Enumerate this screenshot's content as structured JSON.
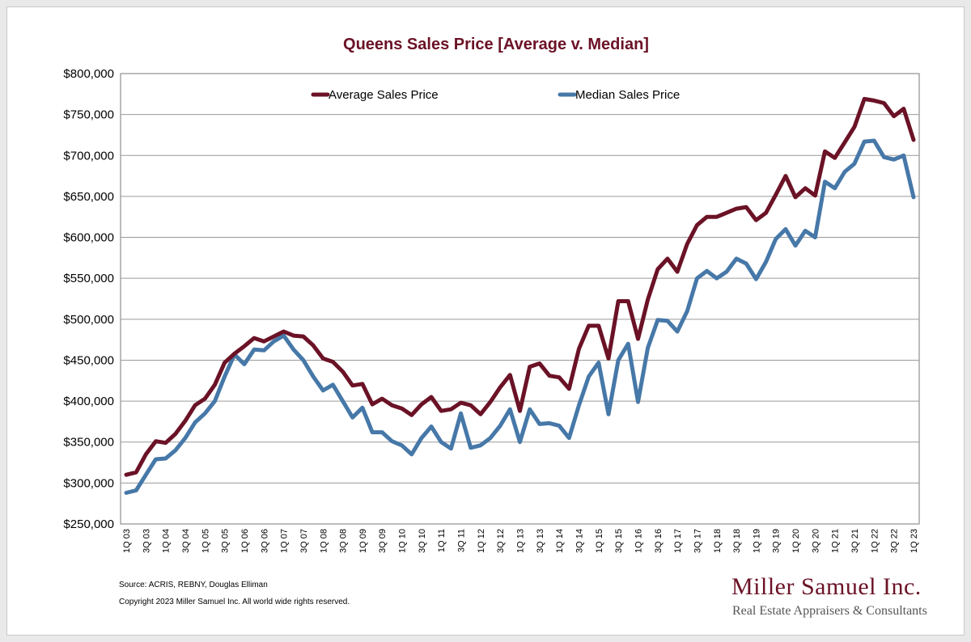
{
  "chart_data": {
    "type": "line",
    "title": "Queens Sales Price [Average v. Median]",
    "xlabel": "",
    "ylabel": "",
    "ylim": [
      250000,
      800000
    ],
    "yticks": [
      250000,
      300000,
      350000,
      400000,
      450000,
      500000,
      550000,
      600000,
      650000,
      700000,
      750000,
      800000
    ],
    "ytick_labels": [
      "$250,000",
      "$300,000",
      "$350,000",
      "$400,000",
      "$450,000",
      "$500,000",
      "$550,000",
      "$600,000",
      "$650,000",
      "$700,000",
      "$750,000",
      "$800,000"
    ],
    "grid": "horizontal",
    "legend_position": "top",
    "x": [
      "1Q 03",
      "2Q 03",
      "3Q 03",
      "4Q 03",
      "1Q 04",
      "2Q 04",
      "3Q 04",
      "4Q 04",
      "1Q 05",
      "2Q 05",
      "3Q 05",
      "4Q 05",
      "1Q 06",
      "2Q 06",
      "3Q 06",
      "4Q 06",
      "1Q 07",
      "2Q 07",
      "3Q 07",
      "4Q 07",
      "1Q 08",
      "2Q 08",
      "3Q 08",
      "4Q 08",
      "1Q 09",
      "2Q 09",
      "3Q 09",
      "4Q 09",
      "1Q 10",
      "2Q 10",
      "3Q 10",
      "4Q 10",
      "1Q 11",
      "2Q 11",
      "3Q 11",
      "4Q 11",
      "1Q 12",
      "2Q 12",
      "3Q 12",
      "4Q 12",
      "1Q 13",
      "2Q 13",
      "3Q 13",
      "4Q 13",
      "1Q 14",
      "2Q 14",
      "3Q 14",
      "4Q 14",
      "1Q 15",
      "2Q 15",
      "3Q 15",
      "4Q 15",
      "1Q 16",
      "2Q 16",
      "3Q 16",
      "4Q 16",
      "1Q 17",
      "2Q 17",
      "3Q 17",
      "4Q 17",
      "1Q 18",
      "2Q 18",
      "3Q 18",
      "4Q 18",
      "1Q 19",
      "2Q 19",
      "3Q 19",
      "4Q 19",
      "1Q 20",
      "2Q 20",
      "3Q 20",
      "4Q 20",
      "1Q 21",
      "2Q 21",
      "3Q 21",
      "4Q 21",
      "1Q 22",
      "2Q 22",
      "3Q 22",
      "4Q 22",
      "1Q 23"
    ],
    "x_tick_labels": [
      "1Q 03",
      "3Q 03",
      "1Q 04",
      "3Q 04",
      "1Q 05",
      "3Q 05",
      "1Q 06",
      "3Q 06",
      "1Q 07",
      "3Q 07",
      "1Q 08",
      "3Q 08",
      "1Q 09",
      "3Q 09",
      "1Q 10",
      "3Q 10",
      "1Q 11",
      "3Q 11",
      "1Q 12",
      "3Q 12",
      "1Q 13",
      "3Q 13",
      "1Q 14",
      "3Q 14",
      "1Q 15",
      "3Q 15",
      "1Q 16",
      "3Q 16",
      "1Q 17",
      "3Q 17",
      "1Q 18",
      "3Q 18",
      "1Q 19",
      "3Q 19",
      "1Q 20",
      "3Q 20",
      "1Q 21",
      "3Q 21",
      "1Q 22",
      "3Q 22",
      "1Q 23"
    ],
    "series": [
      {
        "name": "Average Sales Price",
        "color": "#6b1226",
        "values": [
          310000,
          313000,
          335000,
          351000,
          349000,
          360000,
          376000,
          395000,
          403000,
          420000,
          447000,
          458000,
          467000,
          477000,
          473000,
          479000,
          485000,
          480000,
          479000,
          468000,
          452000,
          448000,
          436000,
          419000,
          421000,
          396000,
          403000,
          395000,
          391000,
          383000,
          396000,
          405000,
          388000,
          390000,
          398000,
          395000,
          384000,
          399000,
          417000,
          432000,
          388000,
          442000,
          446000,
          431000,
          429000,
          415000,
          464000,
          492000,
          492000,
          452000,
          522000,
          522000,
          476000,
          524000,
          561000,
          574000,
          558000,
          592000,
          615000,
          625000,
          625000,
          630000,
          635000,
          637000,
          621000,
          630000,
          652000,
          675000,
          649000,
          660000,
          651000,
          705000,
          697000,
          716000,
          735000,
          769000,
          767000,
          764000,
          748000,
          757000,
          719000
        ]
      },
      {
        "name": "Median Sales Price",
        "color": "#4678a8",
        "values": [
          288000,
          291000,
          310000,
          329000,
          330000,
          340000,
          355000,
          374000,
          385000,
          400000,
          430000,
          457000,
          445000,
          463000,
          462000,
          473000,
          480000,
          463000,
          450000,
          430000,
          413000,
          420000,
          400000,
          380000,
          392000,
          362000,
          362000,
          351000,
          346000,
          335000,
          355000,
          369000,
          350000,
          342000,
          385000,
          343000,
          346000,
          355000,
          370000,
          390000,
          350000,
          390000,
          372000,
          373000,
          370000,
          355000,
          395000,
          430000,
          447000,
          384000,
          450000,
          470000,
          399000,
          465000,
          499000,
          498000,
          485000,
          510000,
          550000,
          559000,
          550000,
          558000,
          574000,
          568000,
          549000,
          570000,
          598000,
          610000,
          590000,
          608000,
          600000,
          668000,
          660000,
          680000,
          690000,
          717000,
          718000,
          698000,
          695000,
          700000,
          649000
        ]
      }
    ]
  },
  "footer": {
    "source": "Source: ACRIS, REBNY, Douglas Elliman",
    "copyright": "Copyright 2023 Miller Samuel Inc.  All world wide rights reserved."
  },
  "brand": {
    "name": "Miller Samuel Inc.",
    "tagline": "Real Estate Appraisers & Consultants"
  }
}
